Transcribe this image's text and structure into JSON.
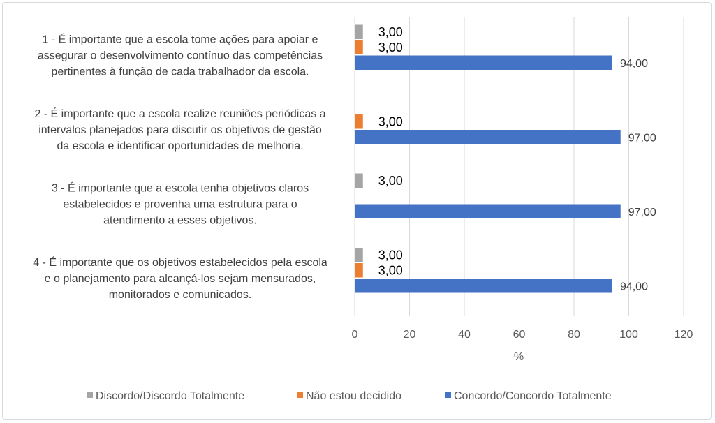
{
  "chart_data": {
    "type": "bar",
    "orientation": "horizontal",
    "title": "",
    "xlabel": "%",
    "ylabel": "",
    "xlim": [
      0,
      120
    ],
    "xticks": [
      0,
      20,
      40,
      60,
      80,
      100,
      120
    ],
    "grid": true,
    "legend_position": "bottom",
    "categories": [
      [
        "1 - É importante que a escola tome ações para apoiar e",
        "assegurar o desenvolvimento contínuo das competências",
        "pertinentes à função de cada trabalhador da escola."
      ],
      [
        "2 - É importante que a escola realize reuniões periódicas a",
        "intervalos planejados para discutir os objetivos de gestão",
        "da escola e identificar oportunidades de melhoria."
      ],
      [
        "3 - É importante que a escola tenha objetivos claros",
        "estabelecidos e provenha uma estrutura para o",
        "atendimento a esses objetivos."
      ],
      [
        "4 - É importante que os objetivos estabelecidos pela escola",
        "e o planejamento para alcançá-los sejam mensurados,",
        "monitorados e comunicados."
      ]
    ],
    "series": [
      {
        "name": "Discordo/Discordo Totalmente",
        "color": "#a5a5a5",
        "values": [
          3.0,
          null,
          3.0,
          3.0
        ],
        "labels": [
          "3,00",
          null,
          "3,00",
          "3,00"
        ]
      },
      {
        "name": "Não estou decidido",
        "color": "#ed7d31",
        "values": [
          3.0,
          3.0,
          null,
          3.0
        ],
        "labels": [
          "3,00",
          "3,00",
          null,
          "3,00"
        ]
      },
      {
        "name": "Concordo/Concordo Totalmente",
        "color": "#4472c4",
        "values": [
          94.0,
          97.0,
          97.0,
          94.0
        ],
        "labels": [
          "94,00",
          "97,00",
          "97,00",
          "94,00"
        ]
      }
    ]
  }
}
